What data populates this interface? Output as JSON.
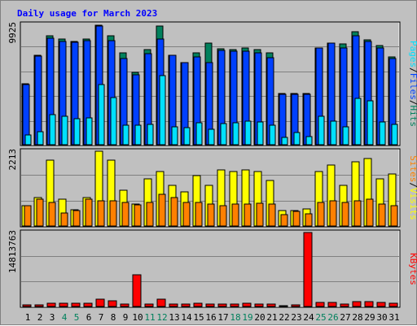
{
  "chart_data": [
    {
      "type": "bar",
      "title": "Daily usage for March 2023",
      "panel": "pages-files-hits",
      "ymax_label": "9925",
      "ylim": [
        0,
        9925
      ],
      "legend": [
        "Pages",
        "/",
        "Files",
        "/",
        "Hits"
      ],
      "categories": [
        "1",
        "2",
        "3",
        "4",
        "5",
        "6",
        "7",
        "8",
        "9",
        "10",
        "11",
        "12",
        "13",
        "14",
        "15",
        "16",
        "17",
        "18",
        "19",
        "20",
        "21",
        "22",
        "23",
        "24",
        "25",
        "26",
        "27",
        "28",
        "29",
        "30",
        "31"
      ],
      "series": [
        {
          "name": "Hits",
          "color": "#00805c",
          "values": [
            5050,
            7350,
            9000,
            8700,
            8550,
            8700,
            9850,
            9000,
            7550,
            6000,
            7850,
            9800,
            7350,
            6800,
            7550,
            8350,
            7900,
            7850,
            8000,
            7850,
            7550,
            4200,
            4200,
            4200,
            7950,
            8400,
            8300,
            9300,
            8650,
            8150,
            7250
          ]
        },
        {
          "name": "Files",
          "color": "#0040ff",
          "values": [
            4950,
            7300,
            8800,
            8500,
            8450,
            8600,
            9800,
            8600,
            7100,
            5750,
            7500,
            8700,
            7350,
            6750,
            7250,
            6800,
            7800,
            7700,
            7700,
            7550,
            7150,
            4150,
            4150,
            4150,
            7950,
            8400,
            8000,
            9000,
            8500,
            7950,
            7100
          ]
        },
        {
          "name": "Pages",
          "color": "#00e0ff",
          "values": [
            800,
            1100,
            2500,
            2350,
            2150,
            2200,
            4950,
            3900,
            1600,
            1600,
            1700,
            5700,
            1500,
            1400,
            1800,
            1300,
            1750,
            1800,
            1950,
            1850,
            1600,
            600,
            1000,
            650,
            2350,
            1950,
            1450,
            3800,
            3650,
            1900,
            1700
          ]
        }
      ]
    },
    {
      "type": "bar",
      "panel": "sites-visits",
      "ymax_label": "2213",
      "ylim": [
        0,
        2213
      ],
      "legend": [
        "Sites",
        "/",
        "Visits"
      ],
      "categories": [
        "1",
        "2",
        "3",
        "4",
        "5",
        "6",
        "7",
        "8",
        "9",
        "10",
        "11",
        "12",
        "13",
        "14",
        "15",
        "16",
        "17",
        "18",
        "19",
        "20",
        "21",
        "22",
        "23",
        "24",
        "25",
        "26",
        "27",
        "28",
        "29",
        "30",
        "31"
      ],
      "series": [
        {
          "name": "Visits",
          "color": "#ffff00",
          "values": [
            600,
            850,
            1950,
            800,
            475,
            850,
            2213,
            1950,
            1050,
            660,
            1400,
            1600,
            1200,
            1000,
            1500,
            1200,
            1650,
            1600,
            1650,
            1600,
            1350,
            450,
            460,
            510,
            1600,
            1800,
            1200,
            1900,
            2000,
            1400,
            1550
          ]
        },
        {
          "name": "Sites",
          "color": "#ff8000",
          "values": [
            600,
            800,
            700,
            380,
            450,
            800,
            750,
            740,
            700,
            630,
            700,
            950,
            850,
            700,
            700,
            650,
            600,
            650,
            660,
            680,
            660,
            330,
            430,
            370,
            700,
            750,
            700,
            740,
            800,
            660,
            600
          ]
        }
      ]
    },
    {
      "type": "bar",
      "panel": "kbytes",
      "ymax_label": "14813763",
      "ylim": [
        0,
        14813763
      ],
      "legend": [
        "KBytes"
      ],
      "categories": [
        "1",
        "2",
        "3",
        "4",
        "5",
        "6",
        "7",
        "8",
        "9",
        "10",
        "11",
        "12",
        "13",
        "14",
        "15",
        "16",
        "17",
        "18",
        "19",
        "20",
        "21",
        "22",
        "23",
        "24",
        "25",
        "26",
        "27",
        "28",
        "29",
        "30",
        "31"
      ],
      "series": [
        {
          "name": "KBytes",
          "color": "#ff0000",
          "values": [
            350000,
            350000,
            700000,
            700000,
            700000,
            700000,
            1400000,
            1200000,
            550000,
            6300000,
            500000,
            1400000,
            550000,
            500000,
            600000,
            500000,
            550000,
            500000,
            600000,
            550000,
            450000,
            130000,
            300000,
            14813763,
            750000,
            800000,
            500000,
            1050000,
            1050000,
            800000,
            700000
          ]
        }
      ]
    }
  ],
  "weekend_days": [
    "4",
    "5",
    "11",
    "12",
    "18",
    "19",
    "25",
    "26"
  ],
  "colors": {
    "title": "#0000ff",
    "panel_bg": "#c0c0c0",
    "grid": "#808080",
    "day_label": "#000000",
    "weekend_label": "#00805c"
  }
}
